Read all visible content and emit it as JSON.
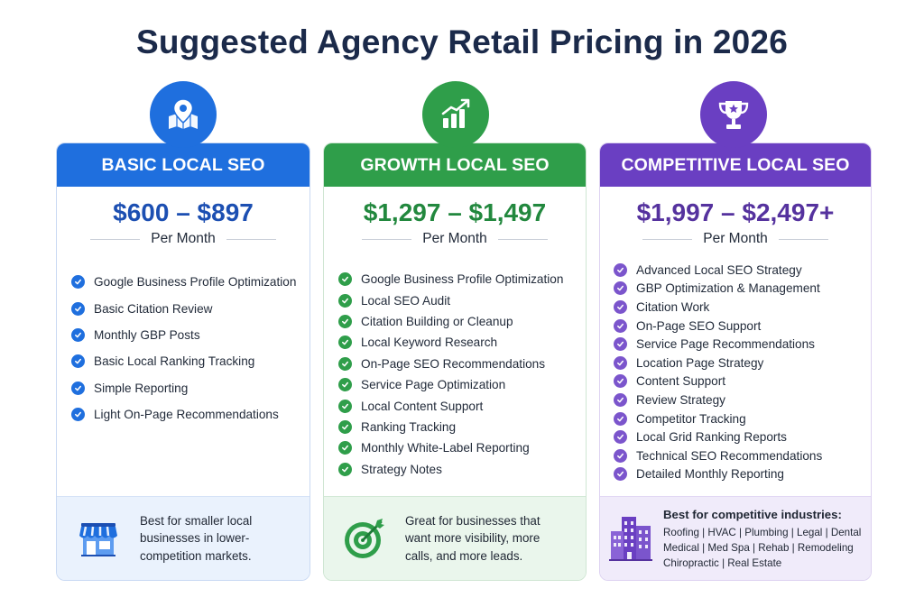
{
  "title": "Suggested Agency Retail Pricing in 2026",
  "colors": {
    "blue": "#1f6fde",
    "green": "#2f9e4a",
    "purple": "#6a3fc2",
    "title": "#1b2a4a"
  },
  "plans": [
    {
      "name": "BASIC LOCAL SEO",
      "price": "$600 – $897",
      "period": "Per Month",
      "icon": "map-pin-icon",
      "features": [
        "Google Business Profile Optimization",
        "Basic Citation Review",
        "Monthly GBP Posts",
        "Basic Local Ranking Tracking",
        "Simple Reporting",
        "Light On-Page Recommendations"
      ],
      "footer_icon": "storefront-icon",
      "footer_lines": [
        "Best for smaller local",
        "businesses in lower-",
        "competition markets."
      ]
    },
    {
      "name": "GROWTH LOCAL SEO",
      "price": "$1,297 – $1,497",
      "period": "Per Month",
      "icon": "growth-chart-icon",
      "features": [
        "Google Business Profile Optimization",
        "Local SEO Audit",
        "Citation Building or Cleanup",
        "Local Keyword Research",
        "On-Page SEO Recommendations",
        "Service Page Optimization",
        "Local Content Support",
        "Ranking Tracking",
        "Monthly White-Label Reporting",
        "Strategy Notes"
      ],
      "footer_icon": "target-icon",
      "footer_lines": [
        "Great for businesses that",
        "want more visibility, more",
        "calls, and more leads."
      ]
    },
    {
      "name": "COMPETITIVE LOCAL SEO",
      "price": "$1,997 – $2,497+",
      "period": "Per Month",
      "icon": "trophy-icon",
      "features": [
        "Advanced Local SEO Strategy",
        "GBP Optimization & Management",
        "Citation Work",
        "On-Page SEO Support",
        "Service Page Recommendations",
        "Location Page Strategy",
        "Content Support",
        "Review Strategy",
        "Competitor Tracking",
        "Local Grid Ranking Reports",
        "Technical SEO Recommendations",
        "Detailed Monthly Reporting"
      ],
      "footer_icon": "city-buildings-icon",
      "footer_heading": "Best for competitive industries:",
      "footer_lines": [
        "Roofing | HVAC | Plumbing | Legal | Dental",
        "Medical | Med Spa | Rehab | Remodeling",
        "Chiropractic | Real Estate"
      ]
    }
  ]
}
